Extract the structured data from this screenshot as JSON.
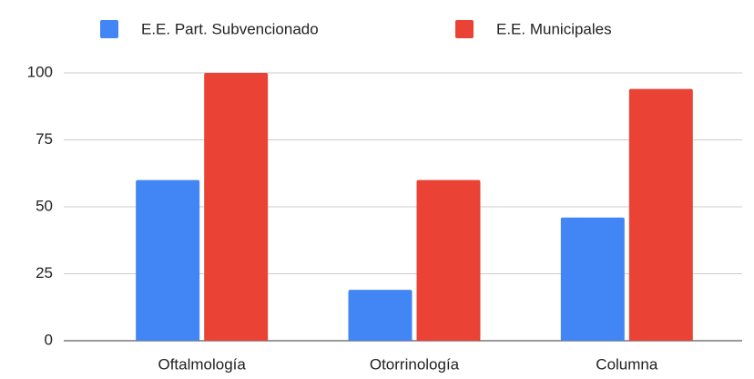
{
  "chart_data": {
    "type": "bar",
    "categories": [
      "Oftalmología",
      "Otorrinología",
      "Columna"
    ],
    "series": [
      {
        "name": "E.E. Part. Subvencionado",
        "color": "#4285f4",
        "values": [
          60,
          19,
          46
        ]
      },
      {
        "name": "E.E. Municipales",
        "color": "#ea4335",
        "values": [
          100,
          60,
          94
        ]
      }
    ],
    "ylim": [
      0,
      100
    ],
    "yticks": [
      0,
      25,
      50,
      75,
      100
    ],
    "grid": true,
    "legend": "top"
  }
}
